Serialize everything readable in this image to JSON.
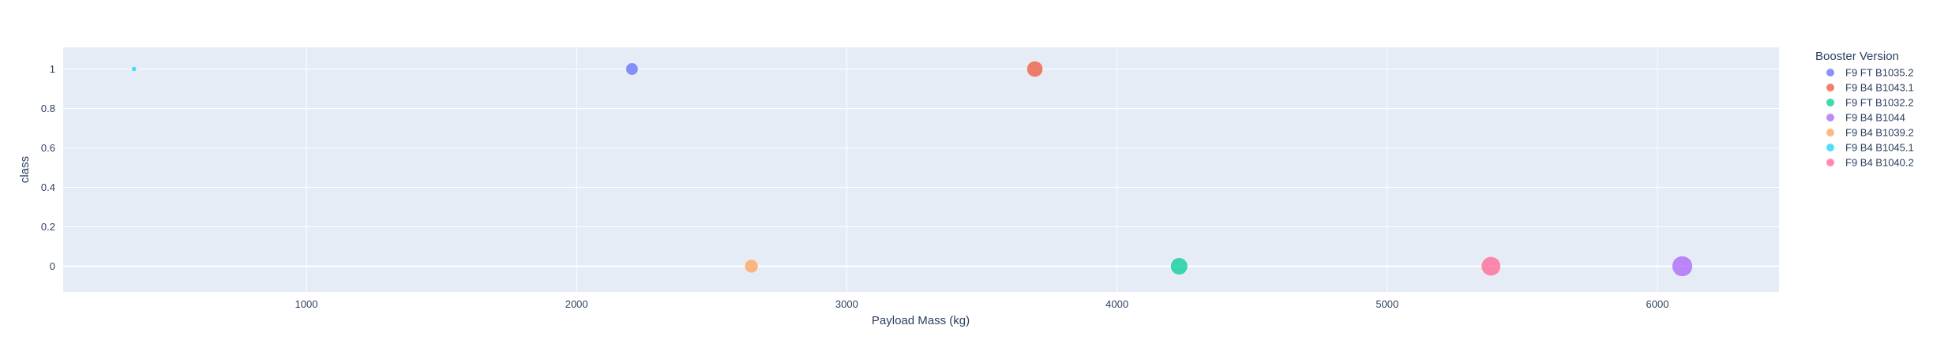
{
  "chart_data": {
    "type": "scatter",
    "xlabel": "Payload Mass (kg)",
    "ylabel": "class",
    "xlim": [
      100,
      6450
    ],
    "ylim": [
      -0.13,
      1.11
    ],
    "xticks": [
      1000,
      2000,
      3000,
      4000,
      5000,
      6000
    ],
    "yticks": [
      0,
      0.2,
      0.4,
      0.6,
      0.8,
      1
    ],
    "grid": true,
    "legend_title": "Booster Version",
    "legend_position": "right",
    "series": [
      {
        "name": "F9 FT  B1035.2",
        "color": "#636efa",
        "points": [
          {
            "x": 2205,
            "y": 1
          }
        ]
      },
      {
        "name": "F9 B4 B1043.1",
        "color": "#ef553b",
        "points": [
          {
            "x": 3696,
            "y": 1
          }
        ]
      },
      {
        "name": "F9 FT  B1032.2",
        "color": "#00cc96",
        "points": [
          {
            "x": 4230,
            "y": 0
          }
        ]
      },
      {
        "name": "F9 B4 B1044",
        "color": "#ab63fa",
        "points": [
          {
            "x": 6092,
            "y": 0
          }
        ]
      },
      {
        "name": "F9 B4  B1039.2",
        "color": "#ffa15a",
        "points": [
          {
            "x": 2647,
            "y": 0
          }
        ]
      },
      {
        "name": "F9 B4 B1045.1",
        "color": "#19d3f3",
        "points": [
          {
            "x": 362,
            "y": 1
          }
        ]
      },
      {
        "name": "F9 B4  B1040.2",
        "color": "#ff6692",
        "points": [
          {
            "x": 5384,
            "y": 0
          }
        ]
      }
    ]
  }
}
